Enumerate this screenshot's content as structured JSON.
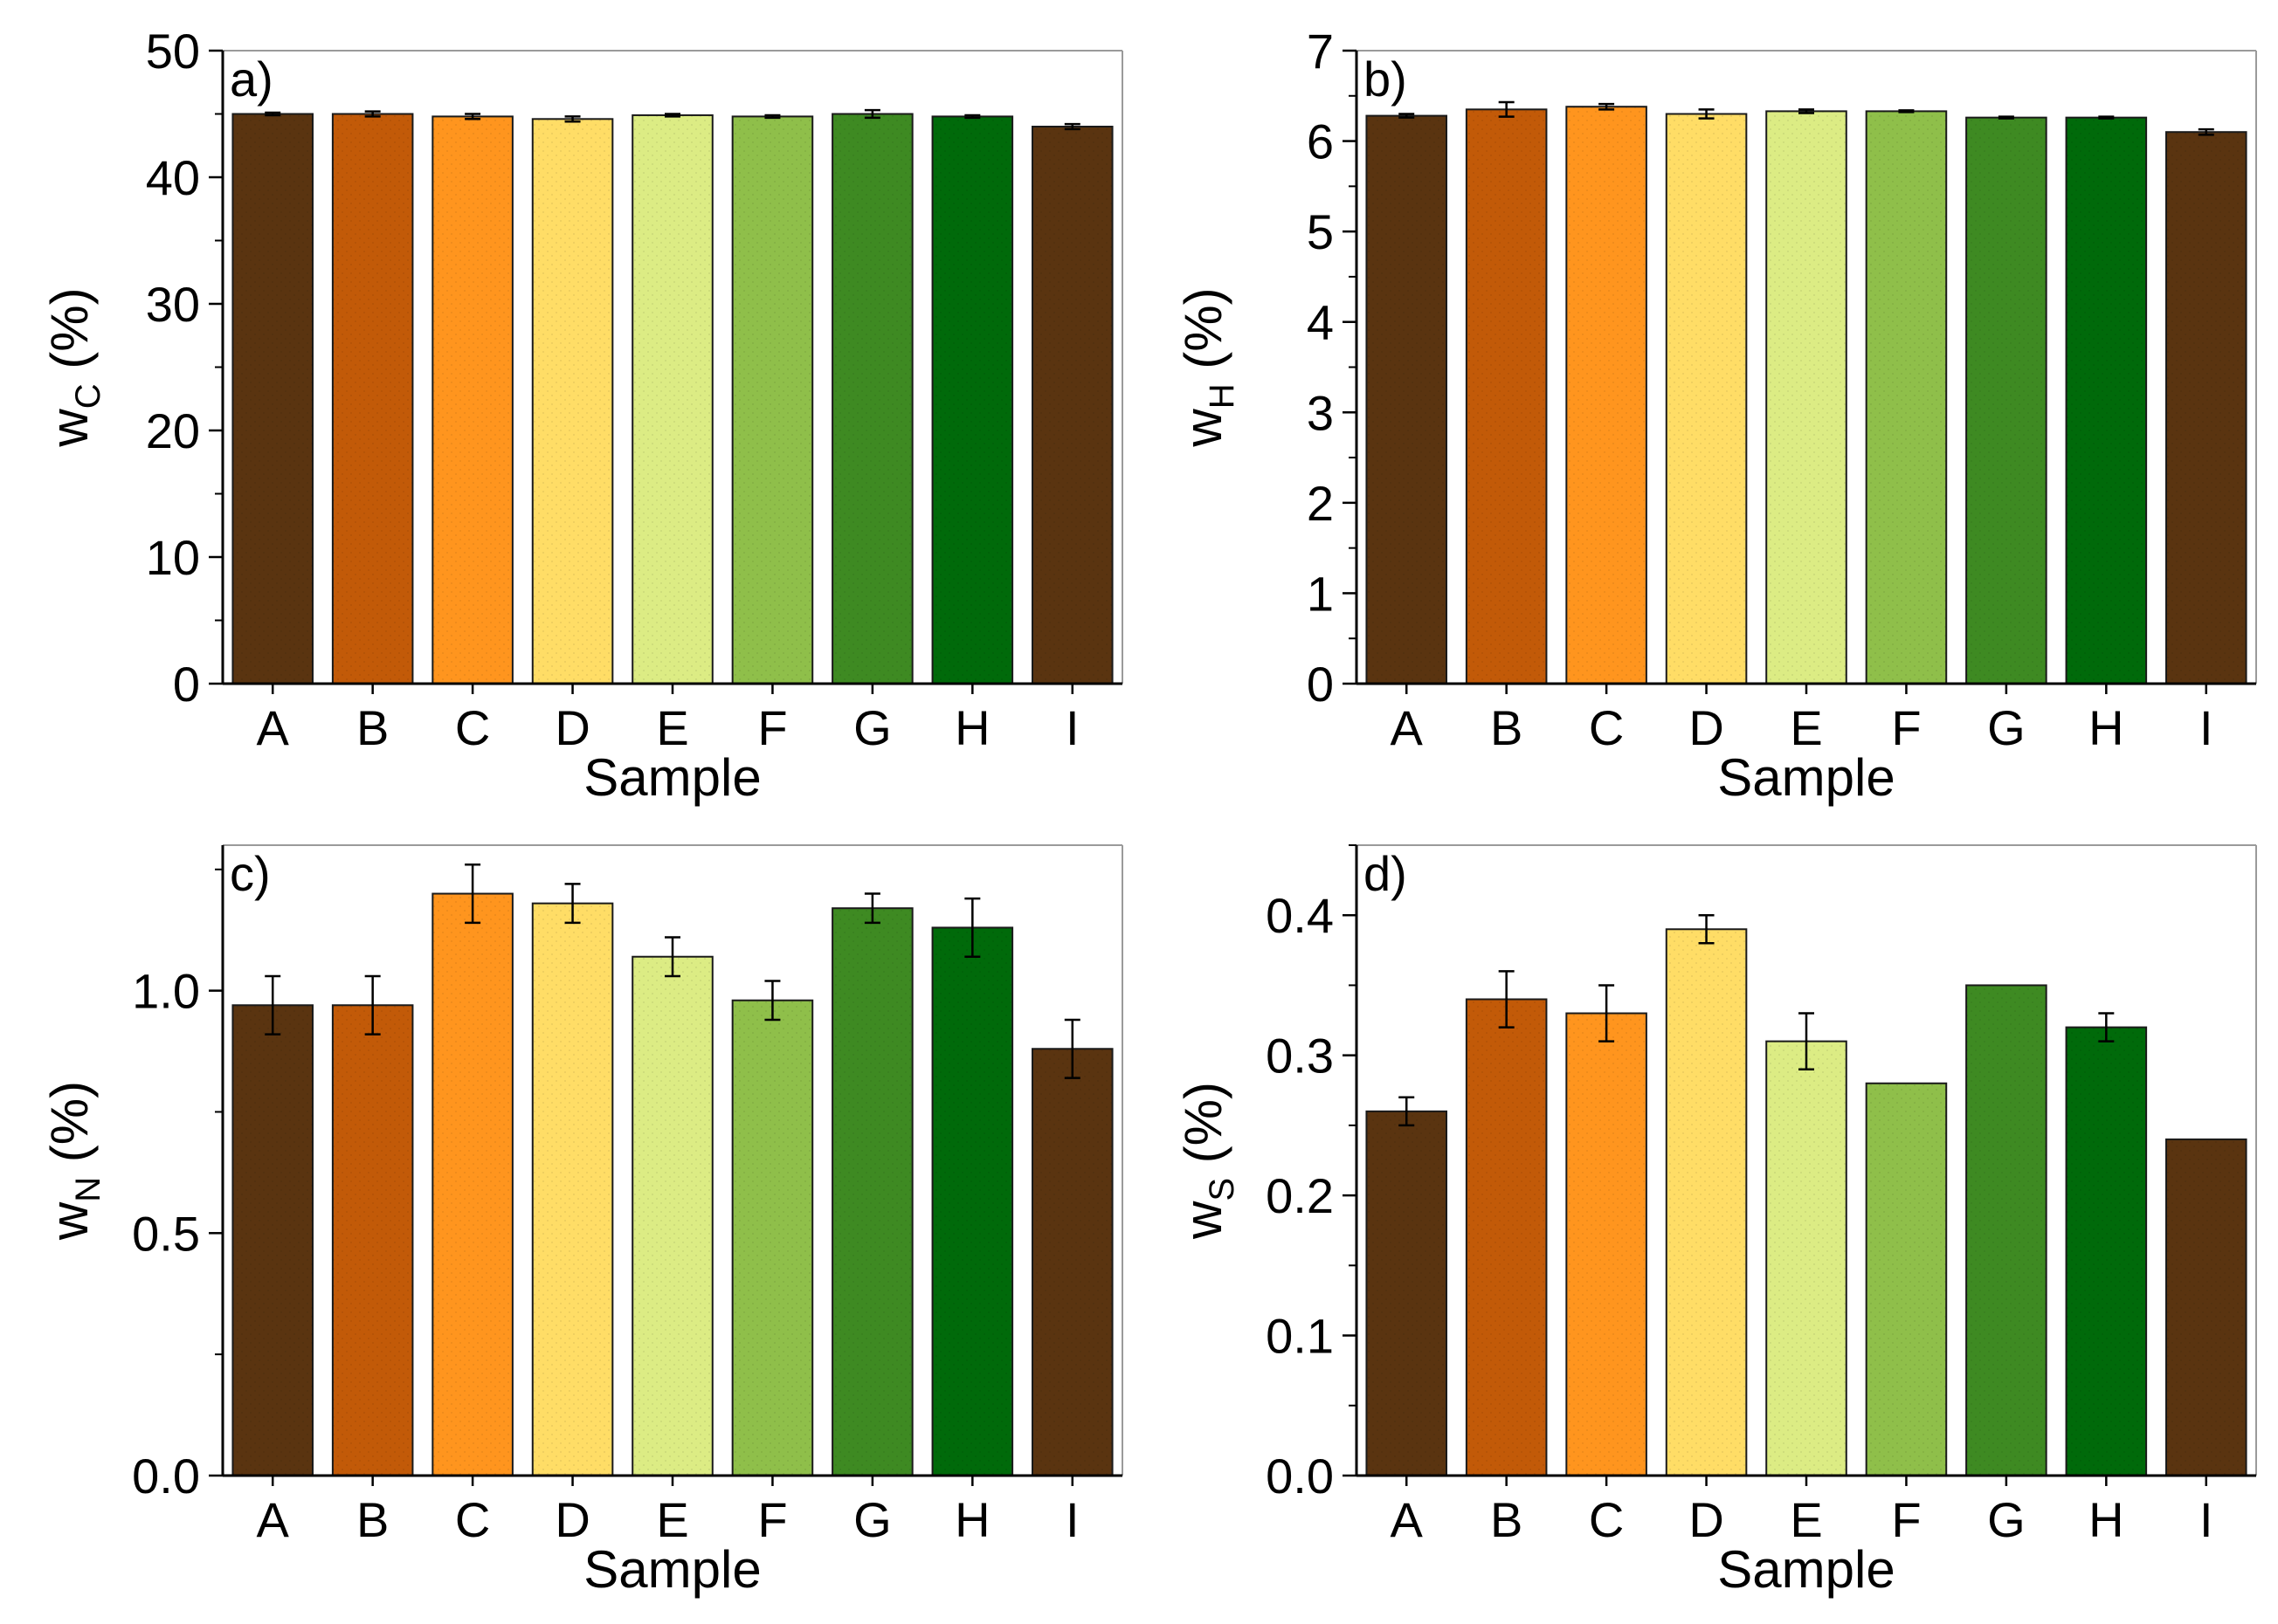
{
  "chart_data": [
    {
      "type": "bar",
      "panel_label": "a)",
      "categories": [
        "A",
        "B",
        "C",
        "D",
        "E",
        "F",
        "G",
        "H",
        "I"
      ],
      "values": [
        45.0,
        45.0,
        44.8,
        44.6,
        44.9,
        44.8,
        45.0,
        44.8,
        44.0
      ],
      "errors": [
        0.1,
        0.2,
        0.2,
        0.2,
        0.1,
        0.1,
        0.3,
        0.1,
        0.2
      ],
      "xlabel": "Sample",
      "ylabel_base": "w",
      "ylabel_sub": "C",
      "ylabel_unit": "(%)",
      "ylim": [
        0,
        50
      ],
      "yticks": [
        "0",
        "10",
        "20",
        "30",
        "40",
        "50"
      ],
      "grid": false
    },
    {
      "type": "bar",
      "panel_label": "b)",
      "categories": [
        "A",
        "B",
        "C",
        "D",
        "E",
        "F",
        "G",
        "H",
        "I"
      ],
      "values": [
        6.28,
        6.35,
        6.38,
        6.3,
        6.33,
        6.33,
        6.26,
        6.26,
        6.1
      ],
      "errors": [
        0.02,
        0.08,
        0.03,
        0.05,
        0.02,
        0.01,
        0.01,
        0.01,
        0.03
      ],
      "xlabel": "Sample",
      "ylabel_base": "w",
      "ylabel_sub": "H",
      "ylabel_unit": "(%)",
      "ylim": [
        0,
        7
      ],
      "yticks": [
        "0",
        "1",
        "2",
        "3",
        "4",
        "5",
        "6",
        "7"
      ],
      "grid": false
    },
    {
      "type": "bar",
      "panel_label": "c)",
      "categories": [
        "A",
        "B",
        "C",
        "D",
        "E",
        "F",
        "G",
        "H",
        "I"
      ],
      "values": [
        0.97,
        0.97,
        1.2,
        1.18,
        1.07,
        0.98,
        1.17,
        1.13,
        0.88
      ],
      "errors": [
        0.06,
        0.06,
        0.06,
        0.04,
        0.04,
        0.04,
        0.03,
        0.06,
        0.06
      ],
      "xlabel": "Sample",
      "ylabel_base": "w",
      "ylabel_sub": "N",
      "ylabel_unit": "(%)",
      "ylim": [
        0,
        1.3
      ],
      "yticks": [
        "0.0",
        "0.5",
        "1.0"
      ],
      "grid": false
    },
    {
      "type": "bar",
      "panel_label": "d)",
      "categories": [
        "A",
        "B",
        "C",
        "D",
        "E",
        "F",
        "G",
        "H",
        "I"
      ],
      "values": [
        0.26,
        0.34,
        0.33,
        0.39,
        0.31,
        0.28,
        0.35,
        0.32,
        0.24
      ],
      "errors": [
        0.01,
        0.02,
        0.02,
        0.01,
        0.02,
        0.0,
        0.0,
        0.01,
        0.0
      ],
      "xlabel": "Sample",
      "ylabel_base": "w",
      "ylabel_sub": "S",
      "ylabel_unit": "(%)",
      "ylim": [
        0,
        0.45
      ],
      "yticks": [
        "0.0",
        "0.1",
        "0.2",
        "0.3",
        "0.4"
      ],
      "grid": false
    }
  ],
  "colors": {
    "bars": [
      "#5a3410",
      "#c25a08",
      "#ff951e",
      "#ffdd66",
      "#dcec84",
      "#8fbf4a",
      "#3e8a22",
      "#006a0a",
      "#5a3410"
    ],
    "axis": "#000000",
    "frame": "#9a9a9a"
  }
}
